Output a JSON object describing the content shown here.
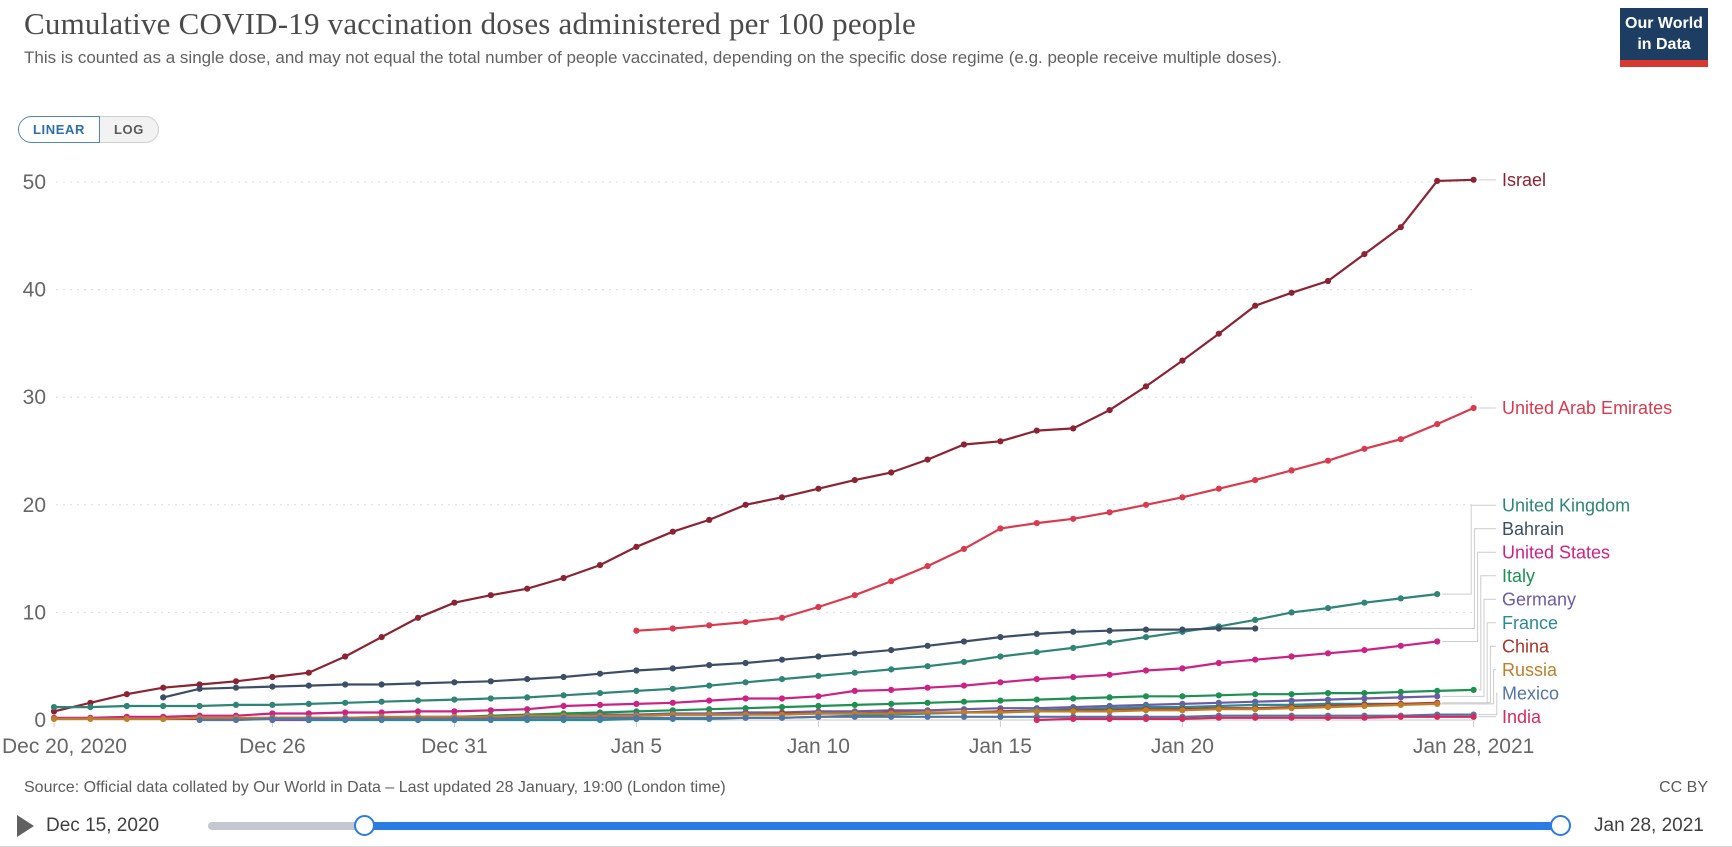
{
  "header": {
    "title": "Cumulative COVID-19 vaccination doses administered per 100 people",
    "subtitle": "This is counted as a single dose, and may not equal the total number of people vaccinated, depending on the specific dose regime (e.g. people receive multiple doses).",
    "logo_line1": "Our World",
    "logo_line2": "in Data"
  },
  "controls": {
    "linear_label": "LINEAR",
    "log_label": "LOG",
    "active_scale": "LINEAR"
  },
  "footer": {
    "source": "Source: Official data collated by Our World in Data – Last updated 28 January, 19:00 (London time)",
    "license": "CC BY"
  },
  "timeline": {
    "start_label": "Dec 15, 2020",
    "end_label": "Jan 28, 2021"
  },
  "colors": {
    "accent_blue": "#2b7be4",
    "grid": "#dcdcdc",
    "axis_text": "#666666",
    "connector": "#cccccc",
    "logo_navy": "#1d3d63",
    "logo_red": "#d93831"
  },
  "chart_data": {
    "type": "line",
    "title": "Cumulative COVID-19 vaccination doses administered per 100 people",
    "grid": true,
    "legend_position": "right",
    "x_axis": {
      "unit": "date",
      "day0_date": "Dec 20, 2020",
      "last_day": 39,
      "ticks": [
        {
          "day": 0,
          "label": "Dec 20, 2020"
        },
        {
          "day": 6,
          "label": "Dec 26"
        },
        {
          "day": 11,
          "label": "Dec 31"
        },
        {
          "day": 16,
          "label": "Jan 5"
        },
        {
          "day": 21,
          "label": "Jan 10"
        },
        {
          "day": 26,
          "label": "Jan 15"
        },
        {
          "day": 31,
          "label": "Jan 20"
        },
        {
          "day": 39,
          "label": "Jan 28, 2021"
        }
      ]
    },
    "y_axis": {
      "min": 0,
      "max": 50,
      "ticks": [
        0,
        10,
        20,
        30,
        40,
        50
      ]
    },
    "series": [
      {
        "name": "Israel",
        "legend_rank": 1,
        "color": "#8c2333",
        "start_day": 0,
        "values": [
          0.8,
          1.6,
          2.4,
          3.0,
          3.3,
          3.6,
          4.0,
          4.4,
          5.9,
          7.7,
          9.5,
          10.9,
          11.6,
          12.2,
          13.2,
          14.4,
          16.1,
          17.5,
          18.6,
          20.0,
          20.7,
          21.5,
          22.3,
          23.0,
          24.2,
          25.6,
          25.9,
          26.9,
          27.1,
          28.8,
          31.0,
          33.4,
          35.9,
          38.5,
          39.7,
          40.8,
          43.3,
          45.8,
          50.1,
          50.2
        ]
      },
      {
        "name": "United Arab Emirates",
        "legend_rank": 2,
        "color": "#da3a4d",
        "start_day": 16,
        "values": [
          8.3,
          8.5,
          8.8,
          9.1,
          9.5,
          10.5,
          11.6,
          12.9,
          14.3,
          15.9,
          17.8,
          18.3,
          18.7,
          19.3,
          20.0,
          20.7,
          21.5,
          22.3,
          23.2,
          24.1,
          25.2,
          26.1,
          27.5,
          29.0
        ]
      },
      {
        "name": "United Kingdom",
        "legend_rank": 3,
        "color": "#2e8477",
        "start_day": 0,
        "values": [
          1.2,
          1.2,
          1.3,
          1.3,
          1.3,
          1.4,
          1.4,
          1.5,
          1.6,
          1.7,
          1.8,
          1.9,
          2.0,
          2.1,
          2.3,
          2.5,
          2.7,
          2.9,
          3.2,
          3.5,
          3.8,
          4.1,
          4.4,
          4.7,
          5.0,
          5.4,
          5.9,
          6.3,
          6.7,
          7.2,
          7.7,
          8.2,
          8.7,
          9.3,
          10.0,
          10.4,
          10.9,
          11.3,
          11.7
        ]
      },
      {
        "name": "Bahrain",
        "legend_rank": 4,
        "color": "#3c4e66",
        "start_day": 3,
        "values": [
          2.1,
          2.9,
          3.0,
          3.1,
          3.2,
          3.3,
          3.3,
          3.4,
          3.5,
          3.6,
          3.8,
          4.0,
          4.3,
          4.6,
          4.8,
          5.1,
          5.3,
          5.6,
          5.9,
          6.2,
          6.5,
          6.9,
          7.3,
          7.7,
          8.0,
          8.2,
          8.3,
          8.4,
          8.4,
          8.5,
          8.5
        ]
      },
      {
        "name": "United States",
        "legend_rank": 5,
        "color": "#cd2285",
        "start_day": 0,
        "values": [
          0.2,
          0.2,
          0.3,
          0.3,
          0.4,
          0.4,
          0.6,
          0.6,
          0.7,
          0.7,
          0.8,
          0.8,
          0.9,
          1.0,
          1.3,
          1.4,
          1.5,
          1.6,
          1.8,
          2.0,
          2.0,
          2.2,
          2.7,
          2.8,
          3.0,
          3.2,
          3.5,
          3.8,
          4.0,
          4.2,
          4.6,
          4.8,
          5.3,
          5.6,
          5.9,
          6.2,
          6.5,
          6.9,
          7.3
        ]
      },
      {
        "name": "Italy",
        "legend_rank": 6,
        "color": "#1d9150",
        "start_day": 7,
        "values": [
          0.0,
          0.1,
          0.1,
          0.2,
          0.3,
          0.4,
          0.5,
          0.6,
          0.7,
          0.8,
          0.9,
          1.0,
          1.1,
          1.2,
          1.3,
          1.4,
          1.5,
          1.6,
          1.7,
          1.8,
          1.9,
          2.0,
          2.1,
          2.2,
          2.2,
          2.3,
          2.4,
          2.4,
          2.5,
          2.5,
          2.6,
          2.7,
          2.8
        ]
      },
      {
        "name": "Germany",
        "legend_rank": 7,
        "color": "#6d5ba5",
        "start_day": 6,
        "values": [
          0.0,
          0.0,
          0.1,
          0.2,
          0.2,
          0.3,
          0.3,
          0.4,
          0.4,
          0.5,
          0.5,
          0.6,
          0.6,
          0.7,
          0.7,
          0.8,
          0.8,
          0.9,
          0.9,
          1.0,
          1.1,
          1.1,
          1.2,
          1.3,
          1.4,
          1.5,
          1.6,
          1.7,
          1.8,
          1.9,
          2.0,
          2.1,
          2.2
        ]
      },
      {
        "name": "France",
        "legend_rank": 8,
        "color": "#2b8b94",
        "start_day": 7,
        "values": [
          0.0,
          0.0,
          0.0,
          0.0,
          0.0,
          0.0,
          0.0,
          0.0,
          0.0,
          0.1,
          0.1,
          0.1,
          0.2,
          0.2,
          0.3,
          0.4,
          0.5,
          0.6,
          0.7,
          0.8,
          0.9,
          1.0,
          1.1,
          1.2,
          1.2,
          1.3,
          1.4,
          1.4,
          1.5,
          1.5,
          1.5
        ]
      },
      {
        "name": "China",
        "legend_rank": 9,
        "color": "#a8352b",
        "start_day": 3,
        "values": [
          0.1,
          0.1,
          0.1,
          0.2,
          0.2,
          0.2,
          0.2,
          0.3,
          0.3,
          0.3,
          0.3,
          0.4,
          0.4,
          0.4,
          0.5,
          0.5,
          0.5,
          0.6,
          0.6,
          0.6,
          0.7,
          0.7,
          0.7,
          0.8,
          0.8,
          0.9,
          0.9,
          1.0,
          1.0,
          1.1,
          1.1,
          1.2,
          1.3,
          1.4,
          1.5,
          1.6
        ]
      },
      {
        "name": "Russia",
        "legend_rank": 10,
        "color": "#bd7f2a",
        "start_day": 0,
        "values": [
          0.1,
          0.1,
          0.1,
          0.1,
          0.2,
          0.2,
          0.2,
          0.2,
          0.2,
          0.3,
          0.3,
          0.3,
          0.3,
          0.4,
          0.4,
          0.4,
          0.4,
          0.5,
          0.5,
          0.5,
          0.5,
          0.6,
          0.6,
          0.6,
          0.7,
          0.7,
          0.7,
          0.8,
          0.8,
          0.8,
          0.9,
          0.9,
          1.0,
          1.0,
          1.1,
          1.2,
          1.3,
          1.4,
          1.5
        ]
      },
      {
        "name": "Mexico",
        "legend_rank": 11,
        "color": "#5474a3",
        "start_day": 4,
        "values": [
          0.0,
          0.0,
          0.1,
          0.1,
          0.1,
          0.1,
          0.1,
          0.1,
          0.1,
          0.2,
          0.2,
          0.2,
          0.2,
          0.2,
          0.2,
          0.2,
          0.2,
          0.3,
          0.3,
          0.3,
          0.3,
          0.3,
          0.3,
          0.3,
          0.3,
          0.3,
          0.3,
          0.3,
          0.4,
          0.4,
          0.4,
          0.4,
          0.4,
          0.4,
          0.5,
          0.5
        ]
      },
      {
        "name": "India",
        "legend_rank": 12,
        "color": "#d62a5e",
        "start_day": 27,
        "values": [
          0.0,
          0.1,
          0.1,
          0.1,
          0.1,
          0.2,
          0.2,
          0.2,
          0.2,
          0.2,
          0.3,
          0.3,
          0.3
        ]
      }
    ]
  }
}
